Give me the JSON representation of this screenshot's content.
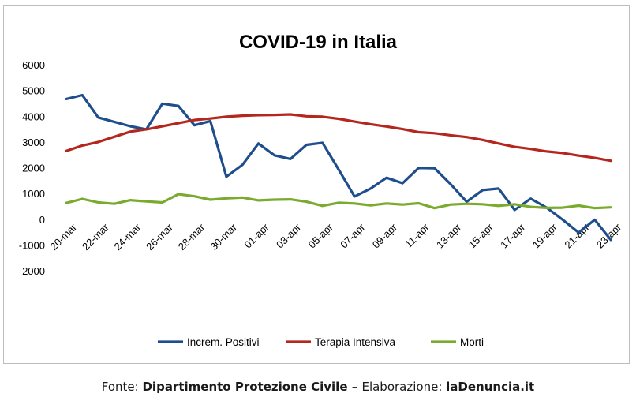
{
  "chart_data": {
    "type": "line",
    "title": "COVID-19 in Italia",
    "xlabel": "",
    "ylabel": "",
    "ylim": [
      -2000,
      6000
    ],
    "yticks": [
      -2000,
      -1000,
      0,
      1000,
      2000,
      3000,
      4000,
      5000,
      6000
    ],
    "grid": false,
    "legend_position": "bottom",
    "x_tick_labels": [
      "20-mar",
      "22-mar",
      "24-mar",
      "26-mar",
      "28-mar",
      "30-mar",
      "01-apr",
      "03-apr",
      "05-apr",
      "07-apr",
      "09-apr",
      "11-apr",
      "13-apr",
      "15-apr",
      "17-apr",
      "19-apr",
      "21-apr",
      "23-apr"
    ],
    "categories": [
      "20-mar",
      "21-mar",
      "22-mar",
      "23-mar",
      "24-mar",
      "25-mar",
      "26-mar",
      "27-mar",
      "28-mar",
      "29-mar",
      "30-mar",
      "31-mar",
      "01-apr",
      "02-apr",
      "03-apr",
      "04-apr",
      "05-apr",
      "06-apr",
      "07-apr",
      "08-apr",
      "09-apr",
      "10-apr",
      "11-apr",
      "12-apr",
      "13-apr",
      "14-apr",
      "15-apr",
      "16-apr",
      "17-apr",
      "18-apr",
      "19-apr",
      "20-apr",
      "21-apr",
      "22-apr",
      "23-apr"
    ],
    "series": [
      {
        "name": "Increm. Positivi",
        "color": "#1f4e8c",
        "values": [
          4670,
          4820,
          3950,
          3780,
          3610,
          3490,
          4490,
          4400,
          3650,
          3810,
          1650,
          2110,
          2940,
          2480,
          2340,
          2890,
          2970,
          1940,
          880,
          1190,
          1610,
          1400,
          1990,
          1980,
          1360,
          680,
          1130,
          1190,
          360,
          800,
          450,
          -20,
          -520,
          -20,
          -800
        ]
      },
      {
        "name": "Terapia Intensiva",
        "color": "#b5261e",
        "values": [
          2650,
          2860,
          3000,
          3200,
          3400,
          3490,
          3610,
          3730,
          3850,
          3910,
          3980,
          4020,
          4040,
          4050,
          4070,
          4000,
          3980,
          3900,
          3790,
          3690,
          3600,
          3500,
          3380,
          3340,
          3260,
          3190,
          3080,
          2940,
          2810,
          2730,
          2630,
          2570,
          2470,
          2380,
          2270
        ]
      },
      {
        "name": "Morti",
        "color": "#7aab2f",
        "values": [
          630,
          790,
          650,
          600,
          740,
          690,
          650,
          970,
          890,
          760,
          810,
          840,
          730,
          760,
          770,
          680,
          520,
          640,
          610,
          540,
          610,
          570,
          620,
          430,
          570,
          600,
          580,
          520,
          580,
          480,
          440,
          450,
          530,
          430,
          460
        ]
      }
    ]
  },
  "source": {
    "prefix": "Fonte: ",
    "origin": "Dipartimento Protezione Civile",
    "separator": " – ",
    "credit_label": "Elaborazione: ",
    "credit": "laDenuncia.it"
  }
}
